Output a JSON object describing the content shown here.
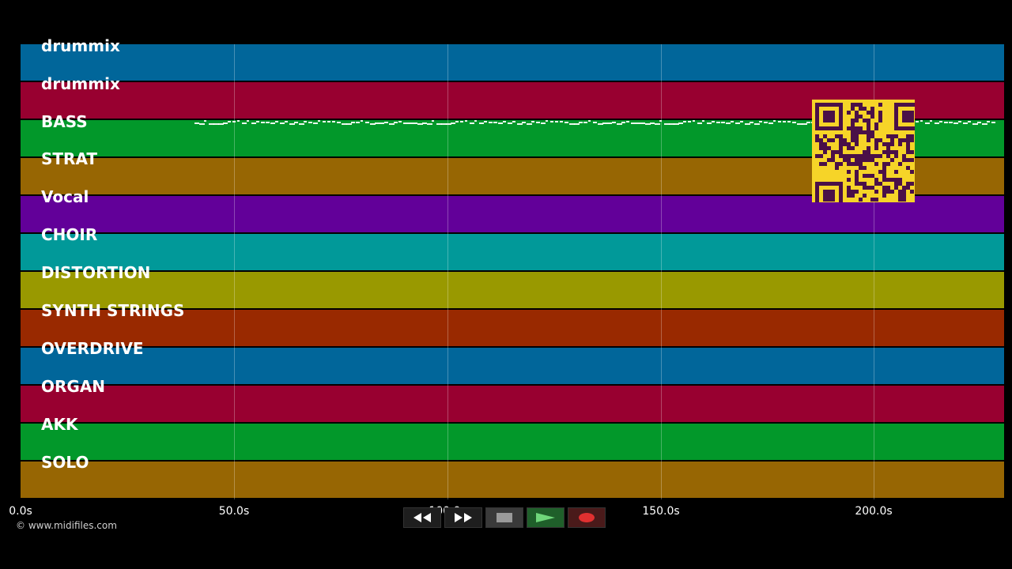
{
  "tracks": [
    {
      "name": "drummix",
      "color": "#01669a"
    },
    {
      "name": "drummix",
      "color": "#980030"
    },
    {
      "name": "BASS",
      "color": "#02982a"
    },
    {
      "name": "STRAT",
      "color": "#976603"
    },
    {
      "name": "Vocal",
      "color": "#620099"
    },
    {
      "name": "CHOIR",
      "color": "#019999"
    },
    {
      "name": "DISTORTION",
      "color": "#999900"
    },
    {
      "name": "SYNTH STRINGS",
      "color": "#992900"
    },
    {
      "name": "OVERDRIVE",
      "color": "#01669a"
    },
    {
      "name": "ORGAN",
      "color": "#980030"
    },
    {
      "name": "AKK",
      "color": "#02982a"
    },
    {
      "name": "SOLO",
      "color": "#976603"
    }
  ],
  "timeline": {
    "ticks": [
      "0.0s",
      "50.0s",
      "100.0s",
      "150.0s",
      "200.0s"
    ]
  },
  "copyright": "© www.midifiles.com",
  "transport": {
    "rewind_icon": "rewind-icon",
    "forward_icon": "fast-forward-icon",
    "stop_icon": "stop-icon",
    "play_icon": "play-icon",
    "record_icon": "record-icon"
  },
  "qr_icon": "qr-code-icon"
}
